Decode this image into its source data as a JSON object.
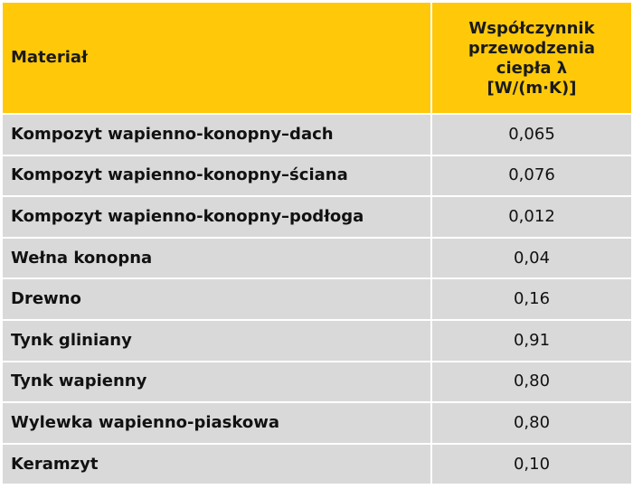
{
  "table": {
    "header": {
      "material": "Materiał",
      "value_lines": [
        "Współczynnik",
        "przewodzenia",
        "ciepła λ",
        "[W/(m·K)]"
      ]
    },
    "rows": [
      {
        "material": "Kompozyt wapienno-konopny–dach",
        "value": "0,065"
      },
      {
        "material": "Kompozyt wapienno-konopny–ściana",
        "value": "0,076"
      },
      {
        "material": "Kompozyt wapienno-konopny–podłoga",
        "value": "0,012"
      },
      {
        "material": "Wełna konopna",
        "value": "0,04"
      },
      {
        "material": "Drewno",
        "value": "0,16"
      },
      {
        "material": "Tynk gliniany",
        "value": "0,91"
      },
      {
        "material": "Tynk wapienny",
        "value": "0,80"
      },
      {
        "material": "Wylewka wapienno-piaskowa",
        "value": "0,80"
      },
      {
        "material": "Keramzyt",
        "value": "0,10"
      }
    ]
  },
  "colors": {
    "header_background": "#ffc90a",
    "row_background": "#d9d9da",
    "grid_lines": "#ffffff"
  }
}
